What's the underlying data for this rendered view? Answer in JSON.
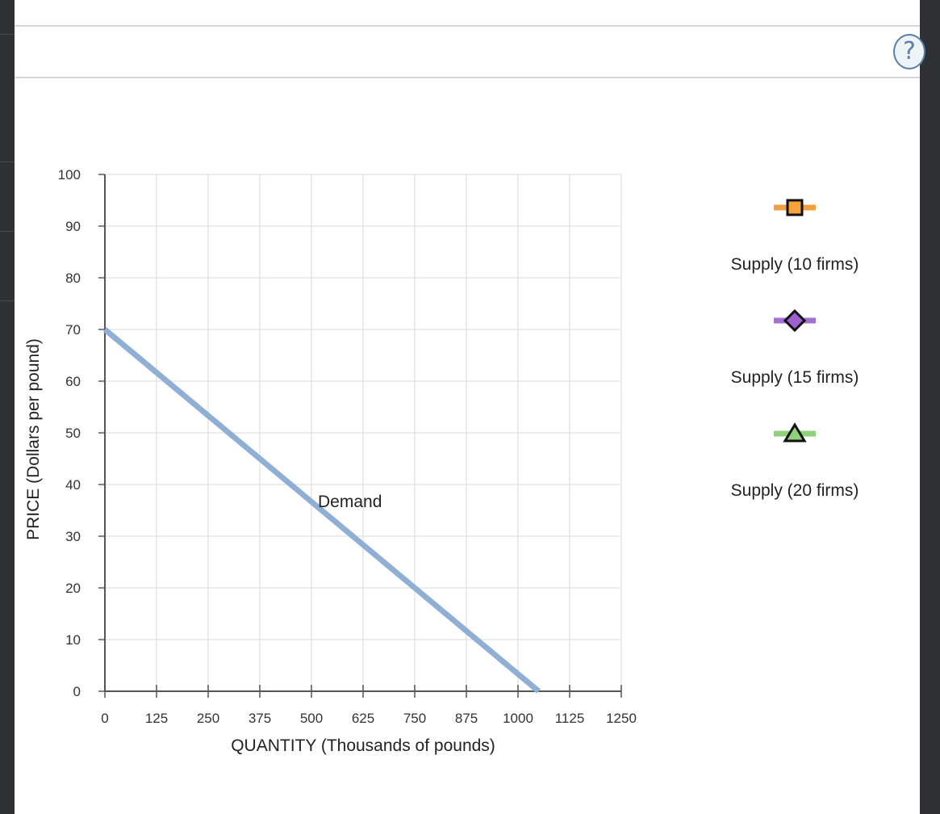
{
  "help": {
    "label": "?"
  },
  "chart_data": {
    "type": "line",
    "title": "",
    "xlabel": "QUANTITY (Thousands of pounds)",
    "ylabel": "PRICE (Dollars per pound)",
    "xlim": [
      0,
      1250
    ],
    "ylim": [
      0,
      100
    ],
    "x_ticks": [
      0,
      125,
      250,
      375,
      500,
      625,
      750,
      875,
      1000,
      1125,
      1250
    ],
    "y_ticks": [
      0,
      10,
      20,
      30,
      40,
      50,
      60,
      70,
      80,
      90,
      100
    ],
    "grid": true,
    "series": [
      {
        "name": "Demand",
        "color": "#8fb0d4",
        "points": [
          {
            "x": 0,
            "y": 70
          },
          {
            "x": 1050,
            "y": 0
          }
        ],
        "label_at": {
          "x": 500,
          "y": 35
        }
      }
    ],
    "legend": {
      "placement": "right",
      "items": [
        {
          "label": "Supply (10 firms)",
          "marker": "square",
          "line_color": "#f0a040",
          "fill": "#f5a33a"
        },
        {
          "label": "Supply (15 firms)",
          "marker": "diamond",
          "line_color": "#a36fd0",
          "fill": "#9f5fd0"
        },
        {
          "label": "Supply (20 firms)",
          "marker": "triangle",
          "line_color": "#8fd07a",
          "fill": "#8fd07a"
        }
      ]
    }
  }
}
